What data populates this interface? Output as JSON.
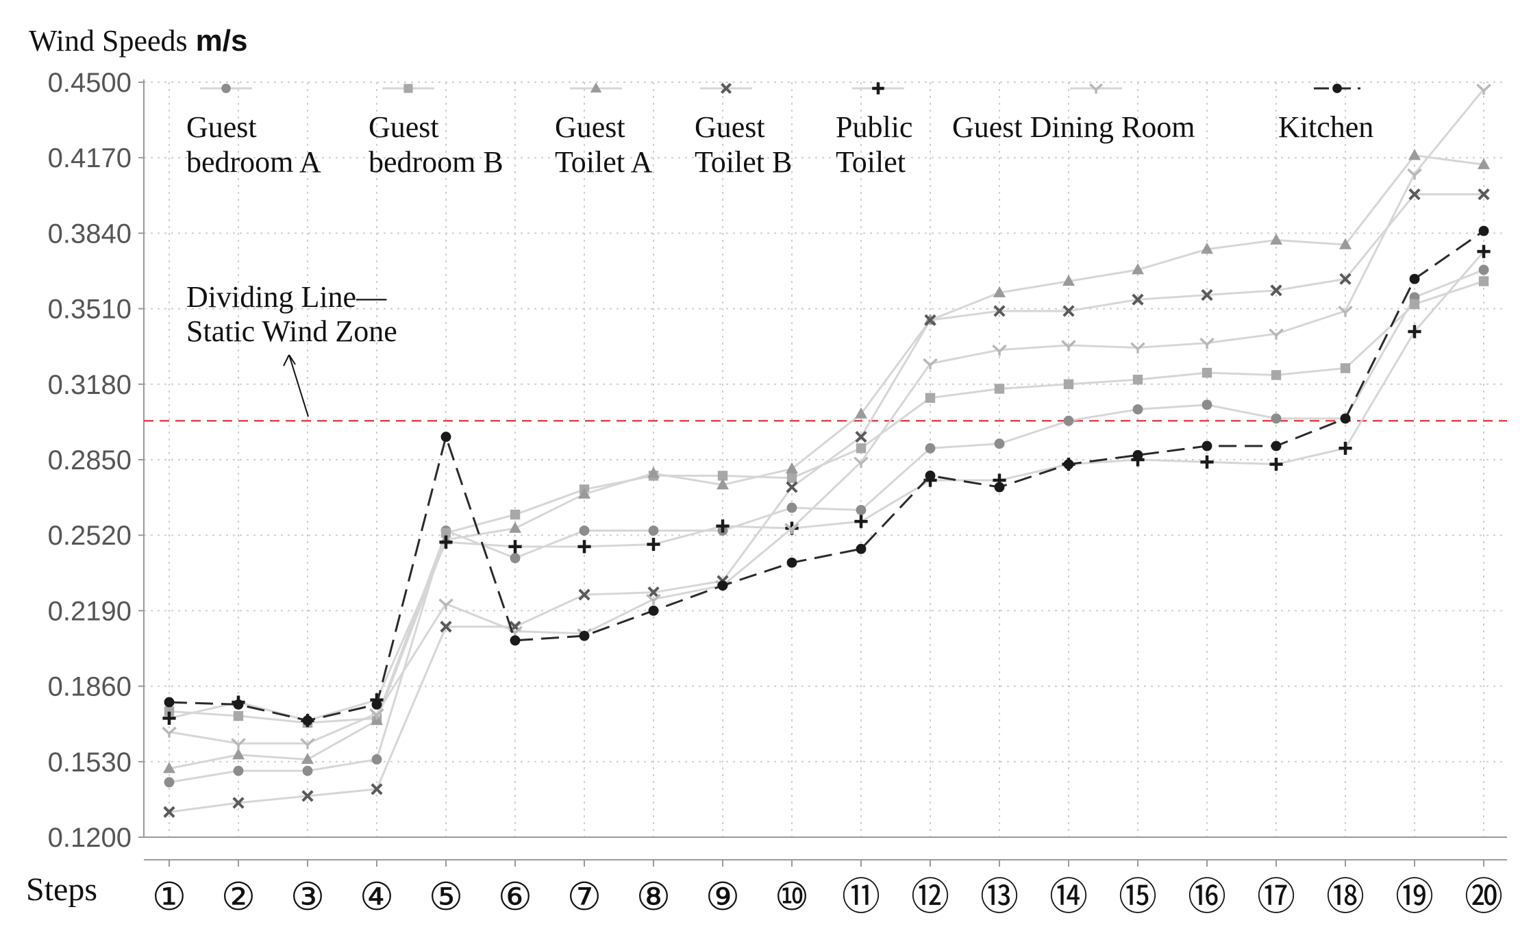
{
  "chart_data": {
    "type": "line",
    "ylabel": "Wind Speeds",
    "ylabel_unit": "m/s",
    "xlabel": "Steps",
    "categories": [
      "①",
      "②",
      "③",
      "④",
      "⑤",
      "⑥",
      "⑦",
      "⑧",
      "⑨",
      "⑩",
      "⑪",
      "⑫",
      "⑬",
      "⑭",
      "⑮",
      "⑯",
      "⑰",
      "⑱",
      "⑲",
      "⑳"
    ],
    "ylim": [
      0.12,
      0.45
    ],
    "yticks": [
      "0.1200",
      "0.1530",
      "0.1860",
      "0.2190",
      "0.2520",
      "0.2850",
      "0.3180",
      "0.3510",
      "0.3840",
      "0.4170",
      "0.4500"
    ],
    "grid": true,
    "legend_position": "top",
    "annotation": {
      "lines": [
        "Dividing Line—",
        "Static Wind Zone"
      ],
      "threshold": 0.302,
      "color": "#e8414a"
    },
    "series": [
      {
        "name": "Guest bedroom A",
        "name_lines": [
          "Guest",
          "bedroom A"
        ],
        "marker": "circle",
        "color": "#8c8c8c",
        "values": [
          0.144,
          0.149,
          0.149,
          0.154,
          0.254,
          0.242,
          0.254,
          0.254,
          0.254,
          0.264,
          0.263,
          0.29,
          0.292,
          0.302,
          0.307,
          0.309,
          0.303,
          0.303,
          0.356,
          0.368
        ]
      },
      {
        "name": "Guest bedroom B",
        "name_lines": [
          "Guest",
          "bedroom B"
        ],
        "marker": "square",
        "color": "#a8a8a8",
        "values": [
          0.175,
          0.173,
          0.17,
          0.172,
          0.253,
          0.261,
          0.272,
          0.278,
          0.278,
          0.277,
          0.29,
          0.312,
          0.316,
          0.318,
          0.32,
          0.323,
          0.322,
          0.325,
          0.353,
          0.363
        ]
      },
      {
        "name": "Guest Toilet A",
        "name_lines": [
          "Guest",
          "Toilet A"
        ],
        "marker": "triangle",
        "color": "#9a9a9a",
        "values": [
          0.15,
          0.156,
          0.154,
          0.171,
          0.25,
          0.255,
          0.27,
          0.279,
          0.274,
          0.281,
          0.305,
          0.346,
          0.358,
          0.363,
          0.368,
          0.377,
          0.381,
          0.379,
          0.418,
          0.414
        ]
      },
      {
        "name": "Guest Toilet B",
        "name_lines": [
          "Guest",
          "Toilet B"
        ],
        "marker": "x",
        "color": "#5a5a5a",
        "values": [
          0.131,
          0.135,
          0.138,
          0.141,
          0.212,
          0.212,
          0.226,
          0.227,
          0.232,
          0.273,
          0.295,
          0.346,
          0.35,
          0.35,
          0.355,
          0.357,
          0.359,
          0.364,
          0.401,
          0.401
        ]
      },
      {
        "name": "Public Toilet",
        "name_lines": [
          "Public",
          "Toilet"
        ],
        "marker": "plus",
        "color": "#1a1a1a",
        "values": [
          0.172,
          0.179,
          0.171,
          0.18,
          0.249,
          0.247,
          0.247,
          0.248,
          0.256,
          0.255,
          0.258,
          0.276,
          0.276,
          0.283,
          0.285,
          0.284,
          0.283,
          0.29,
          0.341,
          0.376
        ]
      },
      {
        "name": "Guest Dining Room",
        "name_lines": [
          "Guest Dining Room"
        ],
        "marker": "v",
        "color": "#b8b8b8",
        "values": [
          0.166,
          0.161,
          0.161,
          0.174,
          0.222,
          0.21,
          0.209,
          0.224,
          0.23,
          0.255,
          0.284,
          0.327,
          0.333,
          0.335,
          0.334,
          0.336,
          0.34,
          0.35,
          0.41,
          0.447
        ]
      },
      {
        "name": "Kitchen",
        "name_lines": [
          "Kitchen"
        ],
        "marker": "circle",
        "color": "#1a1a1a",
        "dashed": true,
        "values": [
          0.179,
          0.178,
          0.171,
          0.178,
          0.295,
          0.206,
          0.208,
          0.219,
          0.23,
          0.24,
          0.246,
          0.278,
          0.273,
          0.283,
          0.287,
          0.291,
          0.291,
          0.303,
          0.364,
          0.385
        ]
      }
    ]
  }
}
